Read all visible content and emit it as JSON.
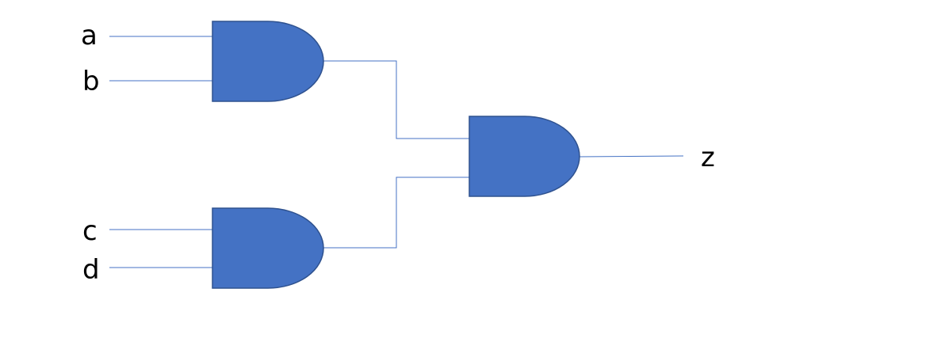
{
  "diagram": {
    "type": "logic-circuit",
    "gates": [
      {
        "id": "and-gate-top",
        "kind": "AND",
        "inputs": [
          "a",
          "b"
        ],
        "output": "and-gate-output"
      },
      {
        "id": "and-gate-bottom",
        "kind": "AND",
        "inputs": [
          "c",
          "d"
        ],
        "output": "and-gate-output"
      },
      {
        "id": "and-gate-output",
        "kind": "AND",
        "inputs": [
          "and-gate-top",
          "and-gate-bottom"
        ],
        "output": "z"
      }
    ],
    "labels": {
      "a": "a",
      "b": "b",
      "c": "c",
      "d": "d",
      "z": "z"
    },
    "colors": {
      "gate_fill": "#4472C4",
      "gate_stroke": "#2F528F",
      "wire": "#4472C4",
      "text": "#000000"
    }
  }
}
